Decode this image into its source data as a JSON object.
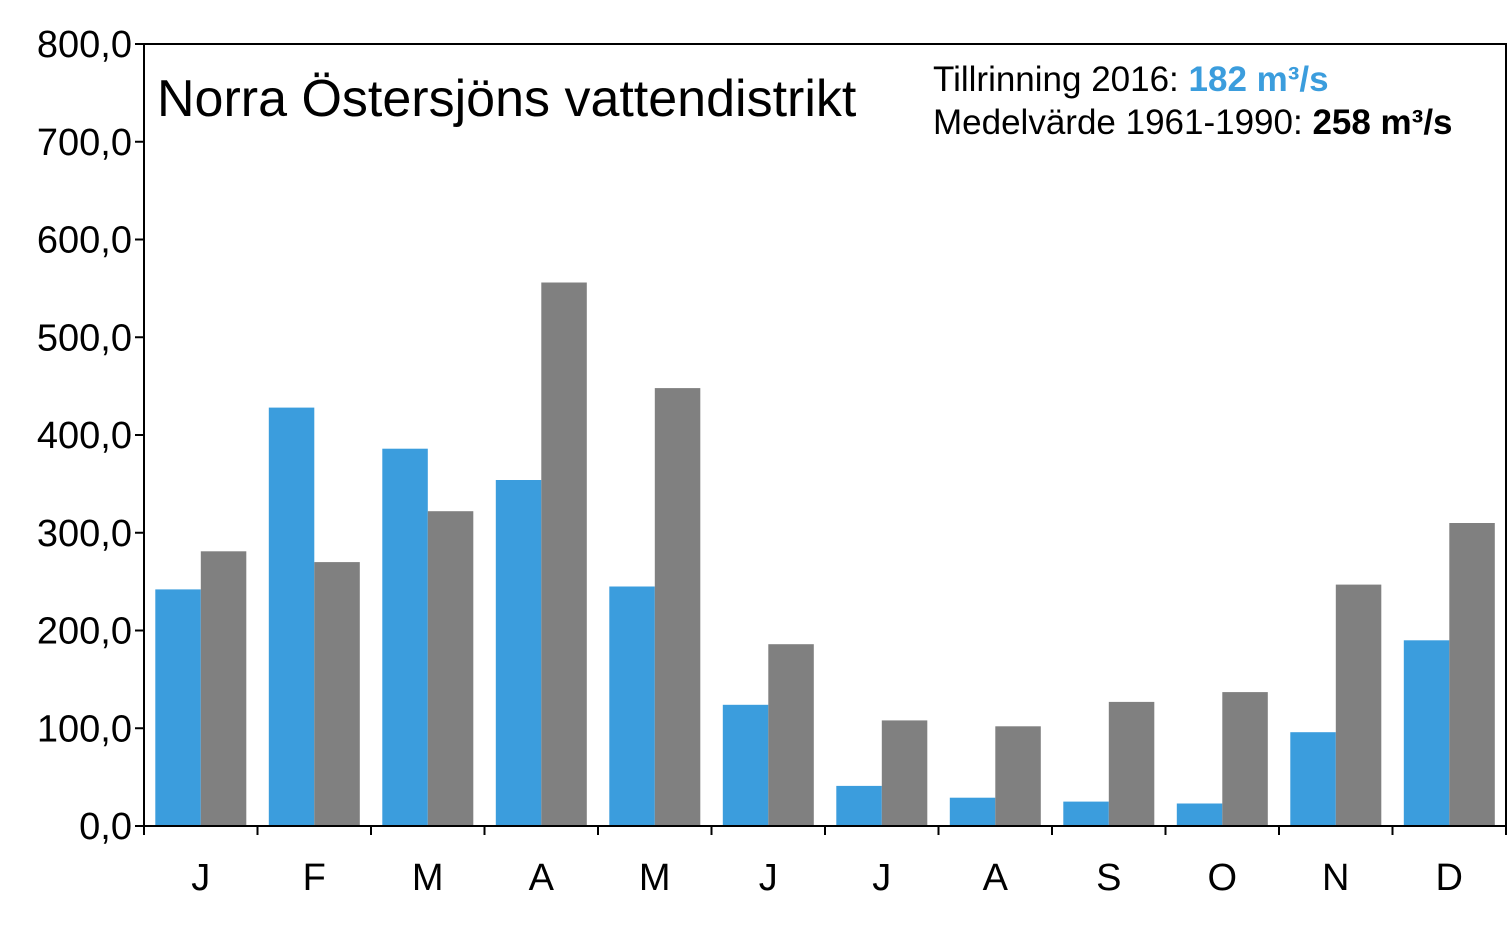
{
  "chart_data": {
    "type": "bar",
    "title": "Norra Östersjöns vattendistrikt",
    "annotations": {
      "line1_label": "Tillrinning 2016: ",
      "line1_value": "182 m³/s",
      "line2_label": "Medelvärde 1961-1990: ",
      "line2_value": "258 m³/s"
    },
    "categories": [
      "J",
      "F",
      "M",
      "A",
      "M",
      "J",
      "J",
      "A",
      "S",
      "O",
      "N",
      "D"
    ],
    "series": [
      {
        "values": [
          242,
          428,
          386,
          354,
          245,
          124,
          41,
          29,
          25,
          23,
          96,
          190
        ],
        "color": "#3b9ddd"
      },
      {
        "values": [
          281,
          270,
          322,
          556,
          448,
          186,
          108,
          102,
          127,
          137,
          247,
          310
        ],
        "color": "#808080"
      }
    ],
    "yticks": [
      "0,0",
      "100,0",
      "200,0",
      "300,0",
      "400,0",
      "500,0",
      "600,0",
      "700,0",
      "800,0"
    ],
    "ylim": [
      0,
      800
    ],
    "grid": false,
    "xlabel": "",
    "ylabel": ""
  }
}
